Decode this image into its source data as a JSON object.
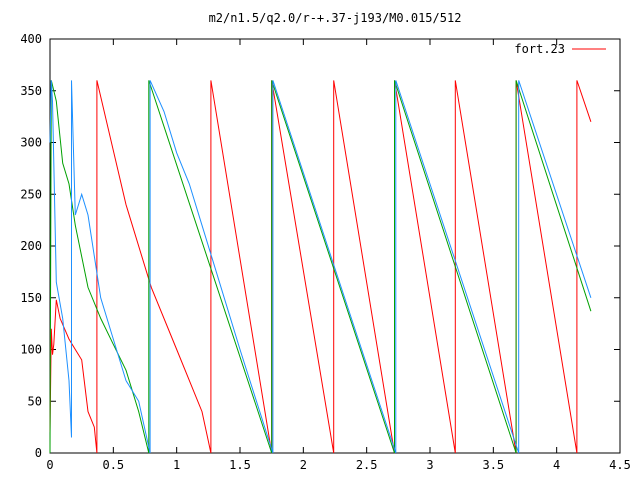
{
  "chart_data": {
    "type": "line",
    "title": "m2/n1.5/q2.0/r-+.37-j193/M0.015/512",
    "xlabel": "",
    "ylabel": "",
    "xlim": [
      0,
      4.5
    ],
    "ylim": [
      0,
      400
    ],
    "x_ticks": [
      "0",
      "0.5",
      "1",
      "1.5",
      "2",
      "2.5",
      "3",
      "3.5",
      "4",
      "4.5"
    ],
    "y_ticks": [
      "0",
      "50",
      "100",
      "150",
      "200",
      "250",
      "300",
      "350",
      "400"
    ],
    "x_tick_values": [
      0,
      0.5,
      1,
      1.5,
      2,
      2.5,
      3,
      3.5,
      4,
      4.5
    ],
    "y_tick_values": [
      0,
      50,
      100,
      150,
      200,
      250,
      300,
      350,
      400
    ],
    "grid": false,
    "legend": "top-right",
    "legend_label": "fort.23",
    "series": [
      {
        "name": "fort.23",
        "color": "#ff0000",
        "points": [
          [
            0,
            20
          ],
          [
            0.01,
            120
          ],
          [
            0.02,
            95
          ],
          [
            0.03,
            105
          ],
          [
            0.05,
            148
          ],
          [
            0.08,
            130
          ],
          [
            0.15,
            110
          ],
          [
            0.2,
            100
          ],
          [
            0.25,
            90
          ],
          [
            0.3,
            40
          ],
          [
            0.35,
            25
          ],
          [
            0.37,
            0
          ],
          [
            0.37,
            360
          ],
          [
            0.6,
            240
          ],
          [
            0.8,
            160
          ],
          [
            1.0,
            100
          ],
          [
            1.2,
            40
          ],
          [
            1.27,
            0
          ],
          [
            1.27,
            360
          ],
          [
            1.75,
            0
          ],
          [
            1.75,
            360
          ],
          [
            2.24,
            0
          ],
          [
            2.24,
            360
          ],
          [
            2.72,
            0
          ],
          [
            2.72,
            360
          ],
          [
            3.2,
            0
          ],
          [
            3.2,
            360
          ],
          [
            3.68,
            0
          ],
          [
            3.68,
            360
          ],
          [
            4.16,
            0
          ],
          [
            4.16,
            360
          ],
          [
            4.27,
            320
          ]
        ]
      },
      {
        "name": "",
        "color": "#00a000",
        "points": [
          [
            0,
            0
          ],
          [
            0.01,
            360
          ],
          [
            0.05,
            340
          ],
          [
            0.1,
            280
          ],
          [
            0.15,
            260
          ],
          [
            0.2,
            220
          ],
          [
            0.3,
            160
          ],
          [
            0.4,
            130
          ],
          [
            0.5,
            105
          ],
          [
            0.6,
            80
          ],
          [
            0.7,
            40
          ],
          [
            0.78,
            0
          ],
          [
            0.78,
            360
          ],
          [
            1.75,
            0
          ],
          [
            1.75,
            360
          ],
          [
            2.72,
            0
          ],
          [
            2.72,
            360
          ],
          [
            3.68,
            0
          ],
          [
            3.68,
            360
          ],
          [
            4.27,
            137
          ]
        ]
      },
      {
        "name": "",
        "color": "#1e90ff",
        "points": [
          [
            0,
            300
          ],
          [
            0.01,
            360
          ],
          [
            0.02,
            340
          ],
          [
            0.05,
            165
          ],
          [
            0.1,
            130
          ],
          [
            0.15,
            70
          ],
          [
            0.17,
            15
          ],
          [
            0.17,
            360
          ],
          [
            0.2,
            230
          ],
          [
            0.25,
            250
          ],
          [
            0.3,
            230
          ],
          [
            0.4,
            150
          ],
          [
            0.5,
            110
          ],
          [
            0.6,
            70
          ],
          [
            0.7,
            50
          ],
          [
            0.79,
            0
          ],
          [
            0.79,
            360
          ],
          [
            0.9,
            330
          ],
          [
            1.0,
            290
          ],
          [
            1.1,
            260
          ],
          [
            1.2,
            220
          ],
          [
            1.3,
            180
          ],
          [
            1.5,
            100
          ],
          [
            1.76,
            0
          ],
          [
            1.76,
            360
          ],
          [
            2.73,
            0
          ],
          [
            2.73,
            360
          ],
          [
            3.7,
            0
          ],
          [
            3.7,
            360
          ],
          [
            4.27,
            150
          ]
        ]
      }
    ]
  }
}
